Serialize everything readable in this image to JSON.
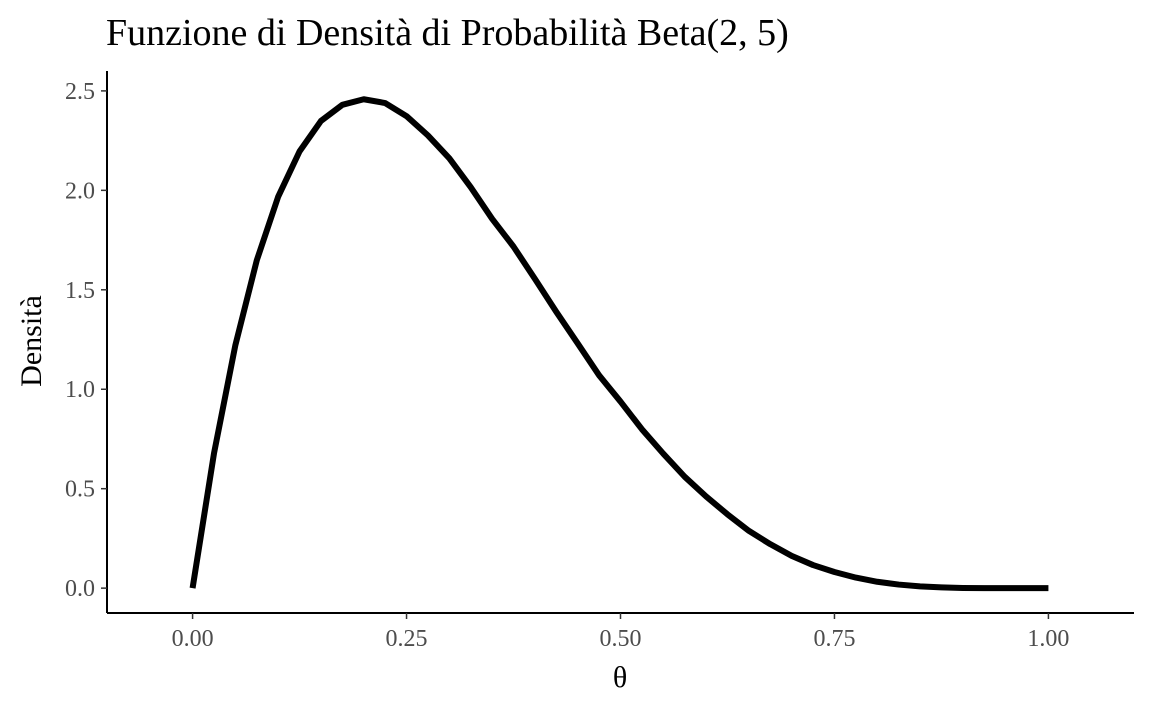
{
  "chart_data": {
    "type": "line",
    "title": "Funzione di Densità di Probabilità Beta(2, 5)",
    "xlabel": "θ",
    "ylabel": "Densità",
    "xlim": [
      -0.1,
      1.1
    ],
    "ylim": [
      -0.125,
      2.6
    ],
    "x_ticks": [
      {
        "value": 0.0,
        "label": "0.00"
      },
      {
        "value": 0.25,
        "label": "0.25"
      },
      {
        "value": 0.5,
        "label": "0.50"
      },
      {
        "value": 0.75,
        "label": "0.75"
      },
      {
        "value": 1.0,
        "label": "1.00"
      }
    ],
    "y_ticks": [
      {
        "value": 0.0,
        "label": "0.0"
      },
      {
        "value": 0.5,
        "label": "0.5"
      },
      {
        "value": 1.0,
        "label": "1.0"
      },
      {
        "value": 1.5,
        "label": "1.5"
      },
      {
        "value": 2.0,
        "label": "2.0"
      },
      {
        "value": 2.5,
        "label": "2.5"
      }
    ],
    "grid": false,
    "legend": "none",
    "series": [
      {
        "color": "#000000",
        "x": [
          0.0,
          0.025,
          0.05,
          0.075,
          0.1,
          0.125,
          0.15,
          0.175,
          0.2,
          0.225,
          0.25,
          0.275,
          0.3,
          0.325,
          0.35,
          0.375,
          0.4,
          0.425,
          0.45,
          0.475,
          0.5,
          0.525,
          0.55,
          0.575,
          0.6,
          0.625,
          0.65,
          0.675,
          0.7,
          0.725,
          0.75,
          0.775,
          0.8,
          0.825,
          0.85,
          0.875,
          0.9,
          0.925,
          0.95,
          0.975,
          1.0
        ],
        "y": [
          0.0,
          0.677,
          1.222,
          1.648,
          1.968,
          2.196,
          2.349,
          2.43,
          2.458,
          2.439,
          2.373,
          2.276,
          2.161,
          2.016,
          1.857,
          1.717,
          1.555,
          1.389,
          1.23,
          1.07,
          0.938,
          0.799,
          0.676,
          0.56,
          0.461,
          0.371,
          0.288,
          0.221,
          0.162,
          0.116,
          0.081,
          0.053,
          0.032,
          0.018,
          0.009,
          0.004,
          0.001,
          0.0003,
          4e-05,
          2e-06,
          0.0
        ]
      }
    ]
  }
}
